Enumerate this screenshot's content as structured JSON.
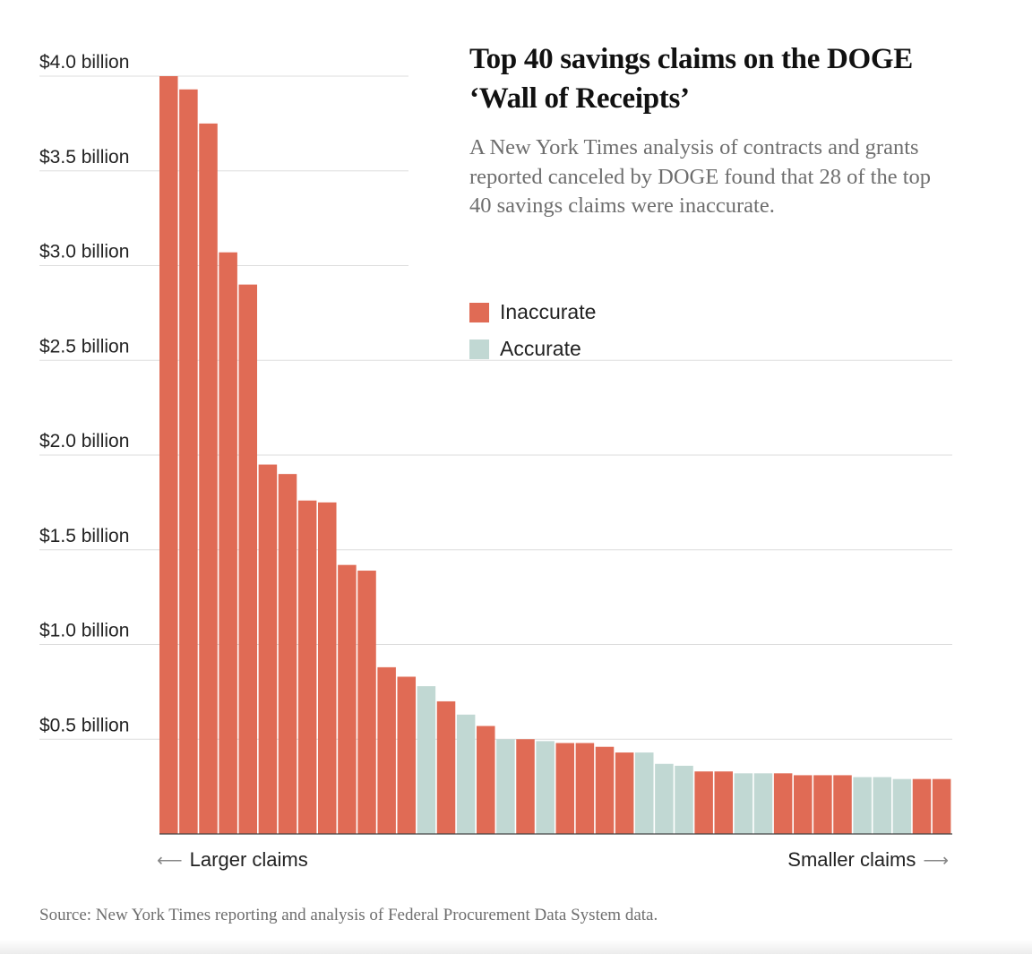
{
  "title": "Top 40 savings claims on the DOGE ‘Wall of Receipts’",
  "subtitle": "A New York Times analysis of contracts and grants reported canceled by DOGE found that 28 of the top 40 savings claims were inaccurate.",
  "legend": [
    {
      "label": "Inaccurate",
      "color": "#e06b55"
    },
    {
      "label": "Accurate",
      "color": "#c1d8d3"
    }
  ],
  "direction": {
    "left_label": "Larger claims",
    "right_label": "Smaller claims",
    "left_arrow": "⟵",
    "right_arrow": "⟶"
  },
  "source": "Source: New York Times reporting and analysis of Federal Procurement Data System data.",
  "chart_data": {
    "type": "bar",
    "title": "Top 40 savings claims on the DOGE ‘Wall of Receipts’",
    "xlabel": "",
    "ylabel": "",
    "ylim": [
      0,
      4.0
    ],
    "y_ticks": [
      {
        "value": 4.0,
        "label": "$4.0 billion"
      },
      {
        "value": 3.5,
        "label": "$3.5 billion"
      },
      {
        "value": 3.0,
        "label": "$3.0 billion"
      },
      {
        "value": 2.5,
        "label": "$2.5 billion"
      },
      {
        "value": 2.0,
        "label": "$2.0 billion"
      },
      {
        "value": 1.5,
        "label": "$1.5 billion"
      },
      {
        "value": 1.0,
        "label": "$1.0 billion"
      },
      {
        "value": 0.5,
        "label": "$0.5 billion"
      }
    ],
    "grid": true,
    "legend_position": "top-right",
    "colors": {
      "Inaccurate": "#e06b55",
      "Accurate": "#c1d8d3"
    },
    "values": [
      4.0,
      3.93,
      3.75,
      3.07,
      2.9,
      1.95,
      1.9,
      1.76,
      1.75,
      1.42,
      1.39,
      0.88,
      0.83,
      0.78,
      0.7,
      0.63,
      0.57,
      0.5,
      0.5,
      0.49,
      0.48,
      0.48,
      0.46,
      0.43,
      0.43,
      0.37,
      0.36,
      0.33,
      0.33,
      0.32,
      0.32,
      0.32,
      0.31,
      0.31,
      0.31,
      0.3,
      0.3,
      0.29,
      0.29,
      0.29
    ],
    "status": [
      "Inaccurate",
      "Inaccurate",
      "Inaccurate",
      "Inaccurate",
      "Inaccurate",
      "Inaccurate",
      "Inaccurate",
      "Inaccurate",
      "Inaccurate",
      "Inaccurate",
      "Inaccurate",
      "Inaccurate",
      "Inaccurate",
      "Accurate",
      "Inaccurate",
      "Accurate",
      "Inaccurate",
      "Accurate",
      "Inaccurate",
      "Accurate",
      "Inaccurate",
      "Inaccurate",
      "Inaccurate",
      "Inaccurate",
      "Accurate",
      "Accurate",
      "Accurate",
      "Inaccurate",
      "Inaccurate",
      "Accurate",
      "Accurate",
      "Inaccurate",
      "Inaccurate",
      "Inaccurate",
      "Inaccurate",
      "Accurate",
      "Accurate",
      "Accurate",
      "Inaccurate",
      "Inaccurate"
    ]
  }
}
